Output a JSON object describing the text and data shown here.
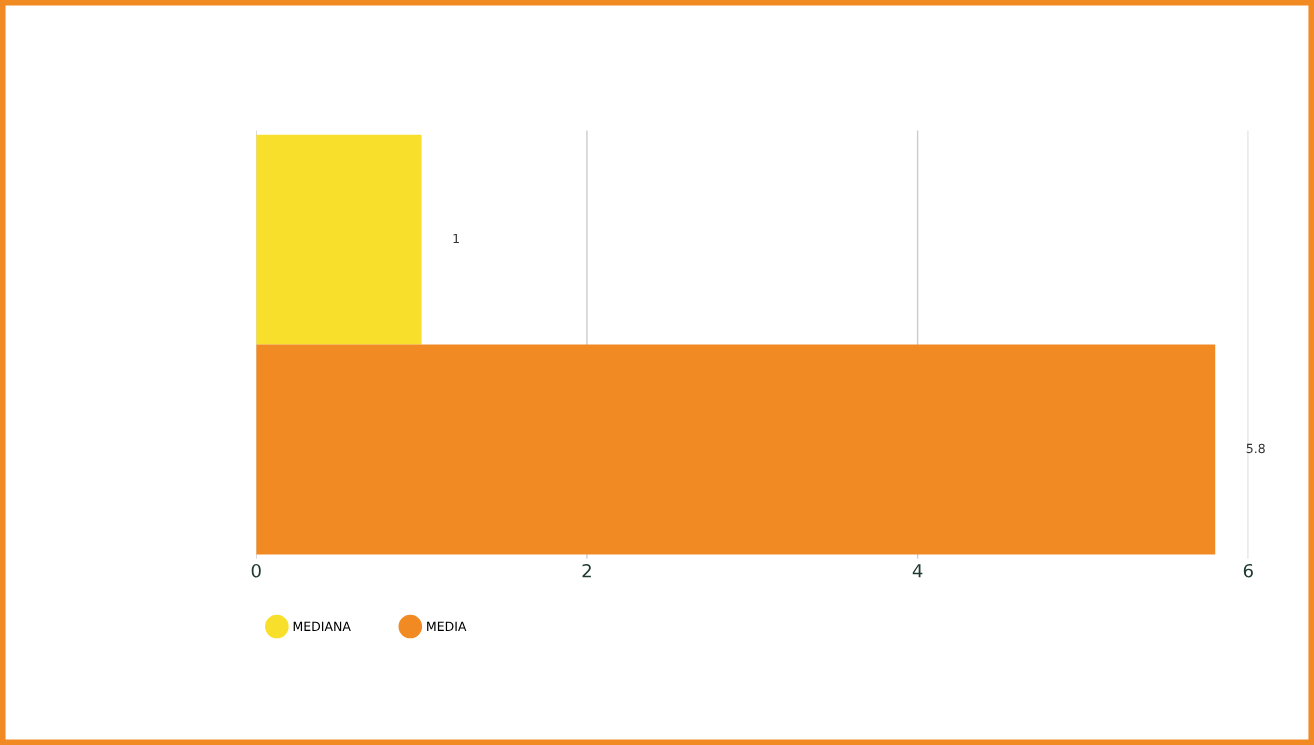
{
  "chart_data": {
    "type": "bar",
    "orientation": "horizontal",
    "categories": [
      null
    ],
    "series": [
      {
        "name": "MEDIANA",
        "color": "#f8df2b",
        "values": [
          1
        ]
      },
      {
        "name": "MEDIA",
        "color": "#f28a24",
        "values": [
          5.8
        ]
      }
    ],
    "xlim": [
      0,
      6
    ],
    "xticks": [
      0,
      2,
      4,
      6
    ],
    "grid": "x",
    "legend": "bottom",
    "data_labels": true,
    "tick_labels": "x"
  }
}
